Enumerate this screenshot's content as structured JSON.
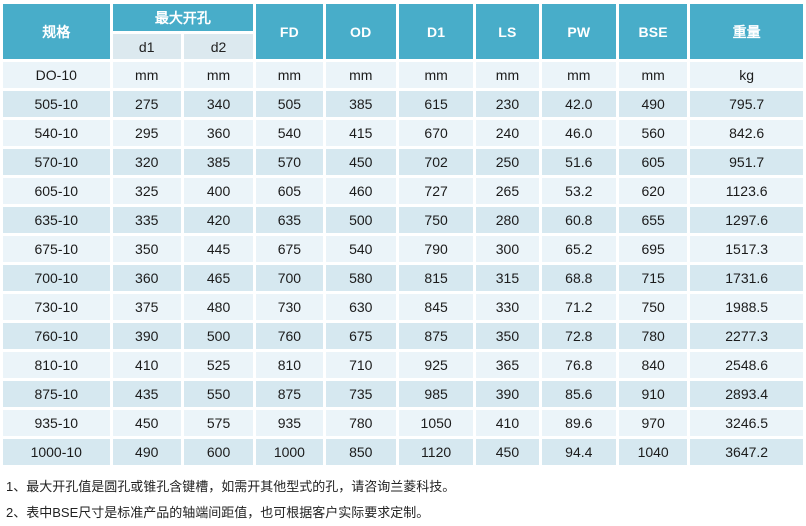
{
  "table": {
    "headers": {
      "spec": "规格",
      "max_opening_group": "最大开孔",
      "d1": "d1",
      "d2": "d2",
      "fd": "FD",
      "od": "OD",
      "d1_cap": "D1",
      "ls": "LS",
      "pw": "PW",
      "bse": "BSE",
      "weight": "重量"
    },
    "unit_row": [
      "DO-10",
      "mm",
      "mm",
      "mm",
      "mm",
      "mm",
      "mm",
      "mm",
      "mm",
      "kg"
    ],
    "rows": [
      [
        "505-10",
        "275",
        "340",
        "505",
        "385",
        "615",
        "230",
        "42.0",
        "490",
        "795.7"
      ],
      [
        "540-10",
        "295",
        "360",
        "540",
        "415",
        "670",
        "240",
        "46.0",
        "560",
        "842.6"
      ],
      [
        "570-10",
        "320",
        "385",
        "570",
        "450",
        "702",
        "250",
        "51.6",
        "605",
        "951.7"
      ],
      [
        "605-10",
        "325",
        "400",
        "605",
        "460",
        "727",
        "265",
        "53.2",
        "620",
        "1123.6"
      ],
      [
        "635-10",
        "335",
        "420",
        "635",
        "500",
        "750",
        "280",
        "60.8",
        "655",
        "1297.6"
      ],
      [
        "675-10",
        "350",
        "445",
        "675",
        "540",
        "790",
        "300",
        "65.2",
        "695",
        "1517.3"
      ],
      [
        "700-10",
        "360",
        "465",
        "700",
        "580",
        "815",
        "315",
        "68.8",
        "715",
        "1731.6"
      ],
      [
        "730-10",
        "375",
        "480",
        "730",
        "630",
        "845",
        "330",
        "71.2",
        "750",
        "1988.5"
      ],
      [
        "760-10",
        "390",
        "500",
        "760",
        "675",
        "875",
        "350",
        "72.8",
        "780",
        "2277.3"
      ],
      [
        "810-10",
        "410",
        "525",
        "810",
        "710",
        "925",
        "365",
        "76.8",
        "840",
        "2548.6"
      ],
      [
        "875-10",
        "435",
        "550",
        "875",
        "735",
        "985",
        "390",
        "85.6",
        "910",
        "2893.4"
      ],
      [
        "935-10",
        "450",
        "575",
        "935",
        "780",
        "1050",
        "410",
        "89.6",
        "970",
        "3246.5"
      ],
      [
        "1000-10",
        "490",
        "600",
        "1000",
        "850",
        "1120",
        "450",
        "94.4",
        "1040",
        "3647.2"
      ]
    ]
  },
  "notes": [
    "1、最大开孔值是圆孔或锥孔含键槽，如需开其他型式的孔，请咨询兰菱科技。",
    "2、表中BSE尺寸是标准产品的轴端间距值，也可根据客户实际要求定制。"
  ],
  "colors": {
    "header_teal": "#48ADC9",
    "subheader_bg": "#DCE9EF",
    "band_dark": "#D6E8F0",
    "band_light": "#EBF4F9"
  }
}
